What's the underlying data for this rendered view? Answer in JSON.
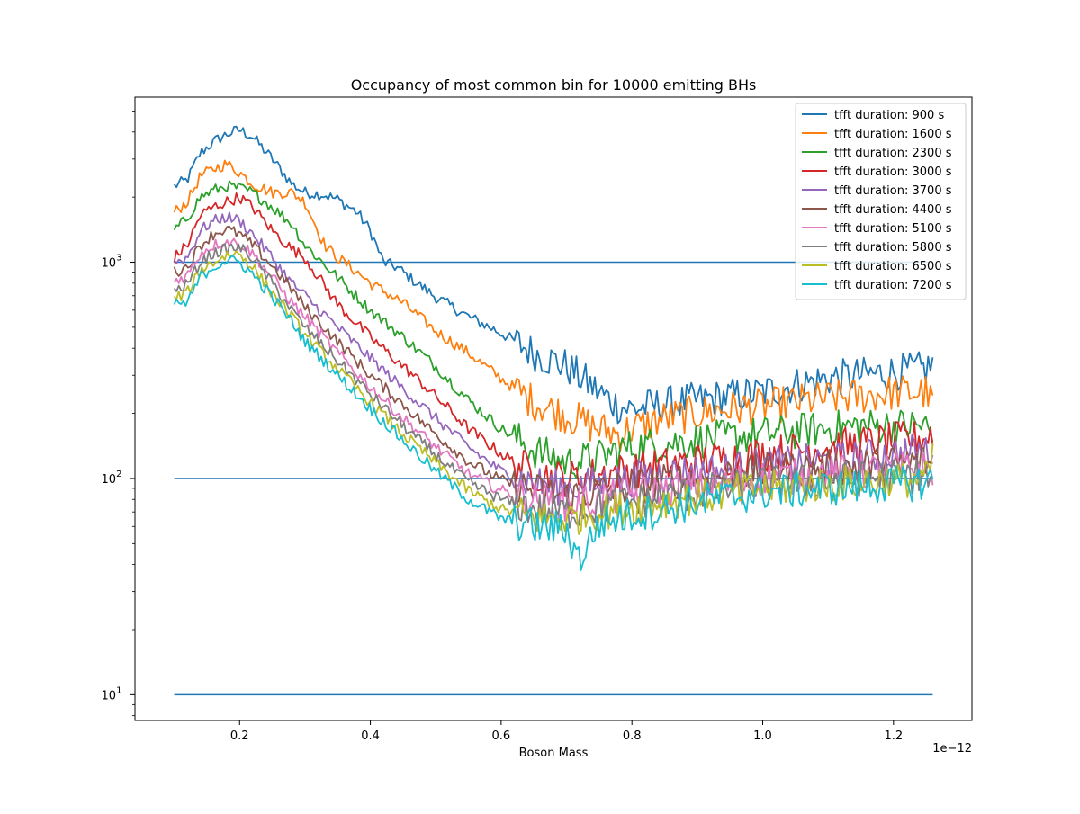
{
  "chart_data": {
    "type": "line",
    "title": "Occupancy of most common bin for 10000 emitting BHs",
    "xlabel": "Boson Mass",
    "ylabel": "",
    "x_offset_label": "1e−12",
    "xlim": [
      0.04,
      1.32
    ],
    "ylim": [
      7.6,
      5800
    ],
    "yscale": "log",
    "grid": false,
    "legend_position": "upper right",
    "x_ticks": [
      {
        "value": 0.2,
        "label": "0.2"
      },
      {
        "value": 0.4,
        "label": "0.4"
      },
      {
        "value": 0.6,
        "label": "0.6"
      },
      {
        "value": 0.8,
        "label": "0.8"
      },
      {
        "value": 1.0,
        "label": "1.0"
      },
      {
        "value": 1.2,
        "label": "1.2"
      }
    ],
    "y_ticks": [
      {
        "value": 10,
        "base": "10",
        "exp": "1"
      },
      {
        "value": 100,
        "base": "10",
        "exp": "2"
      },
      {
        "value": 1000,
        "base": "10",
        "exp": "3"
      }
    ],
    "reference_lines": {
      "color": "#1f77b4",
      "x_range": [
        0.1,
        1.26
      ],
      "values": [
        10,
        100,
        1000
      ]
    },
    "series": [
      {
        "name": "tfft duration: 900 s",
        "color": "#1f77b4",
        "noise": 0.1,
        "x": [
          0.1,
          0.12,
          0.14,
          0.16,
          0.18,
          0.2,
          0.22,
          0.25,
          0.28,
          0.3,
          0.33,
          0.35,
          0.38,
          0.4,
          0.42,
          0.44,
          0.46,
          0.5,
          0.55,
          0.6,
          0.65,
          0.7,
          0.75,
          0.78,
          0.8,
          0.85,
          0.9,
          0.95,
          1.0,
          1.05,
          1.1,
          1.15,
          1.2,
          1.25,
          1.26
        ],
        "y": [
          2250,
          2400,
          3200,
          3600,
          3900,
          4100,
          3800,
          3000,
          2300,
          2100,
          2050,
          1950,
          1700,
          1400,
          1000,
          950,
          850,
          690,
          560,
          470,
          380,
          330,
          250,
          215,
          210,
          220,
          230,
          240,
          250,
          270,
          290,
          300,
          310,
          320,
          340
        ]
      },
      {
        "name": "tfft duration: 1600 s",
        "color": "#ff7f0e",
        "noise": 0.1,
        "x": [
          0.1,
          0.12,
          0.14,
          0.16,
          0.18,
          0.2,
          0.22,
          0.25,
          0.28,
          0.3,
          0.33,
          0.35,
          0.38,
          0.4,
          0.45,
          0.5,
          0.55,
          0.6,
          0.65,
          0.7,
          0.75,
          0.78,
          0.8,
          0.85,
          0.9,
          0.95,
          1.0,
          1.05,
          1.1,
          1.15,
          1.2,
          1.25,
          1.26
        ],
        "y": [
          1700,
          1900,
          2500,
          2700,
          2850,
          2600,
          2300,
          2100,
          2100,
          1900,
          1200,
          1050,
          900,
          800,
          650,
          480,
          380,
          290,
          225,
          195,
          170,
          160,
          170,
          190,
          200,
          210,
          215,
          225,
          235,
          240,
          250,
          250,
          220
        ]
      },
      {
        "name": "tfft duration: 2300 s",
        "color": "#2ca02c",
        "noise": 0.1,
        "x": [
          0.1,
          0.12,
          0.14,
          0.16,
          0.18,
          0.2,
          0.22,
          0.25,
          0.28,
          0.3,
          0.35,
          0.4,
          0.45,
          0.5,
          0.55,
          0.6,
          0.65,
          0.7,
          0.75,
          0.78,
          0.8,
          0.85,
          0.9,
          0.95,
          1.0,
          1.05,
          1.1,
          1.15,
          1.2,
          1.25,
          1.26
        ],
        "y": [
          1400,
          1600,
          2000,
          2150,
          2250,
          2200,
          2100,
          1800,
          1500,
          1200,
          850,
          600,
          450,
          330,
          230,
          170,
          135,
          118,
          125,
          135,
          140,
          145,
          150,
          155,
          160,
          165,
          170,
          175,
          175,
          175,
          150
        ]
      },
      {
        "name": "tfft duration: 3000 s",
        "color": "#d62728",
        "noise": 0.1,
        "x": [
          0.1,
          0.12,
          0.14,
          0.16,
          0.18,
          0.2,
          0.22,
          0.25,
          0.28,
          0.3,
          0.35,
          0.4,
          0.45,
          0.5,
          0.55,
          0.6,
          0.65,
          0.7,
          0.75,
          0.8,
          0.85,
          0.9,
          0.95,
          1.0,
          1.05,
          1.1,
          1.15,
          1.2,
          1.25,
          1.26
        ],
        "y": [
          1050,
          1200,
          1650,
          1800,
          1900,
          2000,
          1800,
          1400,
          1150,
          1050,
          640,
          450,
          330,
          240,
          170,
          130,
          105,
          100,
          105,
          110,
          115,
          120,
          125,
          130,
          135,
          140,
          145,
          150,
          155,
          165
        ]
      },
      {
        "name": "tfft duration: 3700 s",
        "color": "#9467bd",
        "noise": 0.1,
        "x": [
          0.1,
          0.12,
          0.14,
          0.16,
          0.18,
          0.2,
          0.22,
          0.25,
          0.28,
          0.3,
          0.35,
          0.4,
          0.45,
          0.5,
          0.55,
          0.6,
          0.65,
          0.7,
          0.75,
          0.8,
          0.85,
          0.9,
          0.95,
          1.0,
          1.05,
          1.1,
          1.15,
          1.2,
          1.25,
          1.26
        ],
        "y": [
          1000,
          1050,
          1400,
          1550,
          1620,
          1560,
          1350,
          1050,
          800,
          700,
          500,
          360,
          260,
          190,
          140,
          108,
          95,
          90,
          95,
          100,
          105,
          108,
          110,
          115,
          118,
          120,
          125,
          130,
          135,
          140
        ]
      },
      {
        "name": "tfft duration: 4400 s",
        "color": "#8c564b",
        "noise": 0.1,
        "x": [
          0.1,
          0.12,
          0.14,
          0.16,
          0.18,
          0.2,
          0.22,
          0.25,
          0.28,
          0.3,
          0.35,
          0.4,
          0.45,
          0.5,
          0.55,
          0.6,
          0.65,
          0.7,
          0.75,
          0.8,
          0.85,
          0.9,
          0.95,
          1.0,
          1.05,
          1.1,
          1.15,
          1.2,
          1.25,
          1.26
        ],
        "y": [
          900,
          950,
          1200,
          1350,
          1420,
          1350,
          1200,
          960,
          750,
          620,
          430,
          300,
          220,
          160,
          120,
          98,
          88,
          82,
          88,
          92,
          96,
          100,
          104,
          108,
          110,
          112,
          115,
          118,
          120,
          112
        ]
      },
      {
        "name": "tfft duration: 5100 s",
        "color": "#e377c2",
        "noise": 0.1,
        "x": [
          0.1,
          0.12,
          0.14,
          0.16,
          0.18,
          0.2,
          0.22,
          0.25,
          0.28,
          0.3,
          0.35,
          0.4,
          0.45,
          0.5,
          0.55,
          0.6,
          0.65,
          0.7,
          0.75,
          0.8,
          0.85,
          0.9,
          0.95,
          1.0,
          1.05,
          1.1,
          1.15,
          1.2,
          1.25,
          1.26
        ],
        "y": [
          820,
          870,
          1100,
          1200,
          1250,
          1220,
          1100,
          850,
          650,
          560,
          380,
          265,
          190,
          140,
          105,
          88,
          80,
          75,
          80,
          85,
          88,
          92,
          96,
          100,
          102,
          105,
          108,
          110,
          112,
          110
        ]
      },
      {
        "name": "tfft duration: 5800 s",
        "color": "#7f7f7f",
        "noise": 0.1,
        "x": [
          0.1,
          0.12,
          0.14,
          0.16,
          0.18,
          0.2,
          0.22,
          0.25,
          0.28,
          0.3,
          0.35,
          0.4,
          0.45,
          0.5,
          0.55,
          0.6,
          0.65,
          0.7,
          0.75,
          0.8,
          0.85,
          0.9,
          0.95,
          1.0,
          1.05,
          1.1,
          1.15,
          1.2,
          1.25,
          1.26
        ],
        "y": [
          730,
          790,
          1000,
          1100,
          1150,
          1170,
          1050,
          800,
          600,
          500,
          350,
          245,
          175,
          128,
          96,
          80,
          72,
          70,
          74,
          78,
          82,
          86,
          90,
          94,
          96,
          98,
          100,
          102,
          104,
          90
        ]
      },
      {
        "name": "tfft duration: 6500 s",
        "color": "#bcbd22",
        "noise": 0.1,
        "x": [
          0.1,
          0.12,
          0.14,
          0.16,
          0.18,
          0.2,
          0.22,
          0.25,
          0.28,
          0.3,
          0.35,
          0.4,
          0.45,
          0.5,
          0.55,
          0.6,
          0.65,
          0.7,
          0.75,
          0.8,
          0.85,
          0.9,
          0.95,
          1.0,
          1.05,
          1.1,
          1.15,
          1.2,
          1.25,
          1.26
        ],
        "y": [
          680,
          720,
          920,
          1000,
          1080,
          1100,
          950,
          720,
          560,
          460,
          320,
          225,
          160,
          118,
          88,
          72,
          66,
          65,
          70,
          74,
          78,
          82,
          86,
          90,
          92,
          94,
          96,
          98,
          100,
          120
        ]
      },
      {
        "name": "tfft duration: 7200 s",
        "color": "#17becf",
        "noise": 0.1,
        "x": [
          0.1,
          0.12,
          0.14,
          0.16,
          0.18,
          0.2,
          0.22,
          0.25,
          0.28,
          0.3,
          0.35,
          0.4,
          0.45,
          0.5,
          0.55,
          0.6,
          0.65,
          0.7,
          0.72,
          0.75,
          0.8,
          0.85,
          0.9,
          0.95,
          1.0,
          1.05,
          1.1,
          1.15,
          1.2,
          1.25,
          1.26
        ],
        "y": [
          650,
          640,
          860,
          950,
          1020,
          1000,
          880,
          690,
          530,
          430,
          300,
          210,
          150,
          108,
          80,
          65,
          60,
          58,
          42,
          62,
          68,
          72,
          78,
          82,
          86,
          88,
          90,
          92,
          94,
          96,
          100
        ]
      }
    ]
  }
}
